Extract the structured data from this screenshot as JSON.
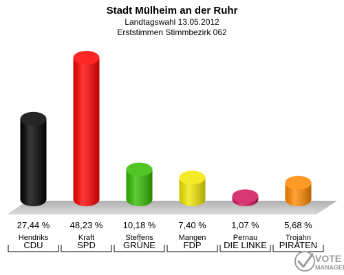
{
  "header": {
    "title": "Stadt Mülheim an der Ruhr",
    "subtitle_line1": "Landtagswahl 13.05.2012",
    "subtitle_line2": "Erststimmen Stimmbezirk 062"
  },
  "chart_data": {
    "type": "bar",
    "title": "Stadt Mülheim an der Ruhr",
    "subtitle": [
      "Landtagswahl 13.05.2012",
      "Erststimmen Stimmbezirk 062"
    ],
    "categories": [
      "CDU",
      "SPD",
      "GRÜNE",
      "FDP",
      "DIE LINKE",
      "PIRATEN"
    ],
    "candidates": [
      "Hendriks",
      "Kraft",
      "Steffens",
      "Mangen",
      "Pernau",
      "Trojahn"
    ],
    "values": [
      27.44,
      48.23,
      10.18,
      7.4,
      1.07,
      5.68
    ],
    "value_labels": [
      "27,44 %",
      "48,23 %",
      "10,18 %",
      "7,40 %",
      "1,07 %",
      "5,68 %"
    ],
    "colors": [
      "#000000",
      "#ff0000",
      "#33bb00",
      "#f2e600",
      "#d0145a",
      "#ff8800"
    ],
    "unit": "%",
    "ylim": [
      0,
      48.23
    ],
    "grid": false,
    "legend": "none"
  },
  "logo": {
    "text_big": "VOTE",
    "text_small": "MANAGER",
    "icon": "checkmark-ballot-icon"
  }
}
